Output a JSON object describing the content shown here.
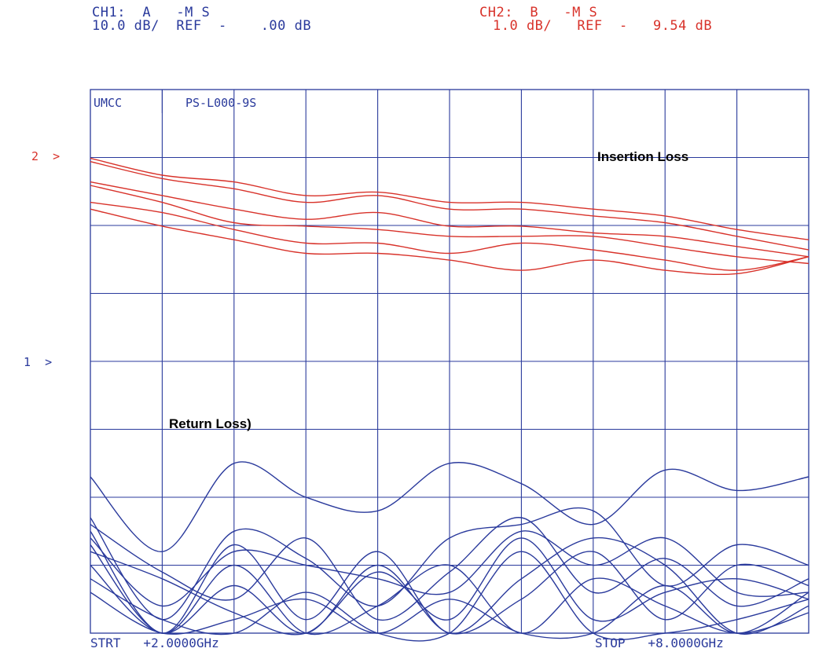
{
  "header": {
    "ch1": {
      "line1": "CH1:  A   -M S",
      "line2": "10.0 dB/  REF  -    .00 dB",
      "color": "#2a3a9c"
    },
    "ch2": {
      "line1": "CH2:  B   -M S",
      "line2": "1.0 dB/   REF  -   9.54 dB",
      "color": "#d8322a"
    }
  },
  "ref_markers": {
    "ch2": "2  >",
    "ch1": "1  >"
  },
  "box_labels": {
    "left": "UMCC",
    "right": "PS-L000-9S"
  },
  "footer": {
    "start": "STRT   +2.0000GHz",
    "stop": "STOP   +8.0000GHz"
  },
  "colors": {
    "grid": "#2a3a9c",
    "insertion": "#d8322a",
    "return": "#2a3a9c"
  },
  "chart_data": {
    "type": "line",
    "x": [
      2,
      2.6,
      3.2,
      3.8,
      4.4,
      5,
      5.6,
      6.2,
      6.8,
      7.4,
      8
    ],
    "xlabel": "",
    "ylabel": "",
    "xlim": [
      2,
      8
    ],
    "grid": true,
    "panels": [
      {
        "name": "Insertion Loss",
        "channel": "CH2",
        "scale_db_per_div": 1.0,
        "reference_db": -9.54,
        "series": [
          {
            "values": [
              -9.55,
              -9.8,
              -9.9,
              -10.1,
              -10.05,
              -10.2,
              -10.2,
              -10.3,
              -10.4,
              -10.6,
              -10.75
            ]
          },
          {
            "values": [
              -9.6,
              -9.85,
              -10.0,
              -10.2,
              -10.1,
              -10.3,
              -10.3,
              -10.4,
              -10.5,
              -10.7,
              -10.9
            ]
          },
          {
            "values": [
              -9.9,
              -10.1,
              -10.3,
              -10.45,
              -10.35,
              -10.55,
              -10.55,
              -10.65,
              -10.7,
              -10.85,
              -11.0
            ]
          },
          {
            "values": [
              -9.95,
              -10.2,
              -10.5,
              -10.55,
              -10.6,
              -10.7,
              -10.7,
              -10.7,
              -10.85,
              -11.0,
              -11.1
            ]
          },
          {
            "values": [
              -10.2,
              -10.35,
              -10.6,
              -10.8,
              -10.8,
              -10.95,
              -10.8,
              -10.9,
              -11.05,
              -11.2,
              -11.0
            ]
          },
          {
            "values": [
              -10.3,
              -10.55,
              -10.75,
              -10.95,
              -10.95,
              -11.05,
              -11.2,
              -11.05,
              -11.2,
              -11.25,
              -11.0
            ]
          }
        ]
      },
      {
        "name": "Return Loss)",
        "channel": "CH1",
        "scale_db_per_div": 10.0,
        "reference_db": 0,
        "series": [
          {
            "values": [
              -17,
              -28,
              -15,
              -20,
              -22,
              -15,
              -18,
              -24,
              -16,
              -19,
              -17
            ]
          },
          {
            "values": [
              -23,
              -38,
              -25,
              -29,
              -36,
              -26,
              -24,
              -22,
              -33,
              -27,
              -30
            ]
          },
          {
            "values": [
              -24,
              -31,
              -35,
              -26,
              -38,
              -31,
              -23,
              -34,
              -29,
              -36,
              -32
            ]
          },
          {
            "values": [
              -26,
              -36,
              -28,
              -30,
              -32,
              -34,
              -25,
              -30,
              -26,
              -34,
              -34
            ]
          },
          {
            "values": [
              -25,
              -45,
              -27,
              -38,
              -28,
              -40,
              -32,
              -26,
              -30,
              -40,
              -36
            ]
          },
          {
            "values": [
              -28,
              -32,
              -37,
              -42,
              -31,
              -38,
              -26,
              -38,
              -34,
              -32,
              -35
            ]
          },
          {
            "values": [
              -30,
              -42,
              -33,
              -40,
              -30,
              -44,
              -35,
              -28,
              -38,
              -30,
              -33
            ]
          },
          {
            "values": [
              -27,
              -45,
              -30,
              -45,
              -36,
              -30,
              -45,
              -32,
              -36,
              -40,
              -37
            ]
          },
          {
            "values": [
              -32,
              -38,
              -45,
              -34,
              -44,
              -40,
              -28,
              -40,
              -42,
              -38,
              -35
            ]
          },
          {
            "values": [
              -34,
              -45,
              -38,
              -35,
              -40,
              -35,
              -42,
              -45,
              -33,
              -44,
              -34
            ]
          }
        ]
      }
    ]
  }
}
